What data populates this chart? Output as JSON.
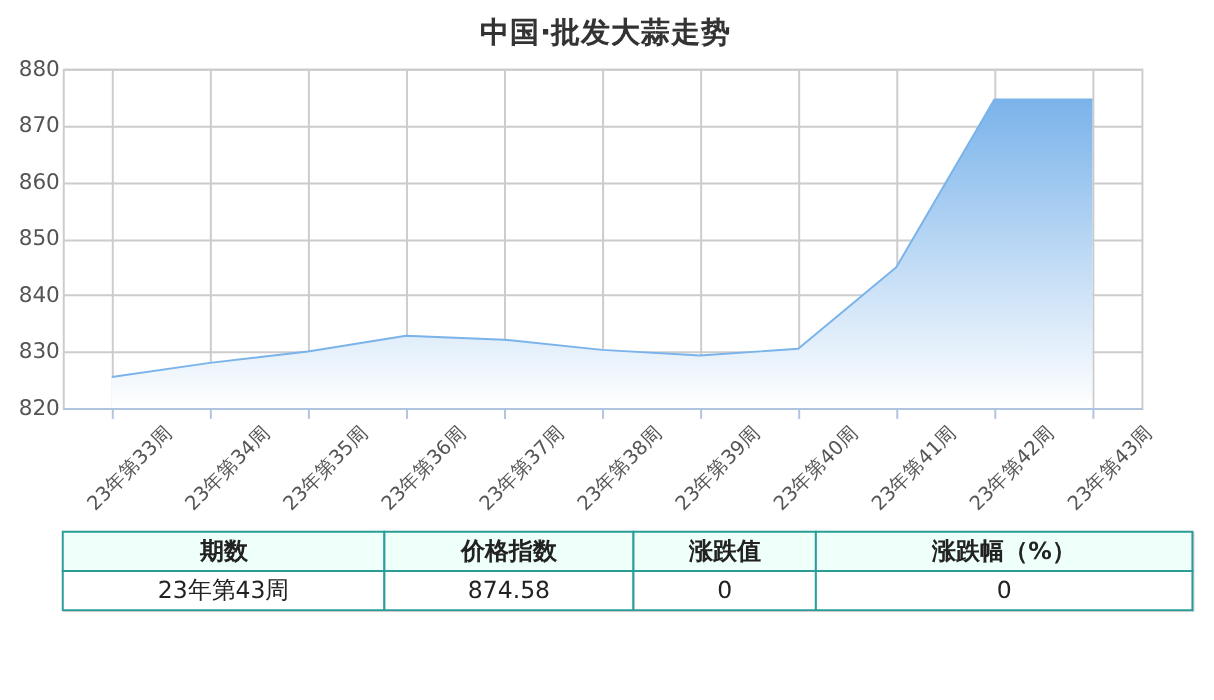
{
  "chart_data": {
    "type": "area",
    "title": "中国·批发大蒜走势",
    "categories": [
      "23年第33周",
      "23年第34周",
      "23年第35周",
      "23年第36周",
      "23年第37周",
      "23年第38周",
      "23年第39周",
      "23年第40周",
      "23年第41周",
      "23年第42周",
      "23年第43周"
    ],
    "values": [
      825.5,
      828,
      830,
      832.8,
      832.1,
      830.3,
      829.3,
      830.5,
      844.9,
      874.58,
      874.58
    ],
    "color": "#7ab3ea",
    "ylim": [
      820,
      880
    ],
    "yticks": [
      820,
      830,
      840,
      850,
      860,
      870,
      880
    ],
    "grid": true,
    "annotations": [
      "期数",
      "价格指数",
      "涨跌值",
      "涨跌幅（%）",
      "23年第43周",
      "874.58",
      "0",
      "0"
    ]
  }
}
